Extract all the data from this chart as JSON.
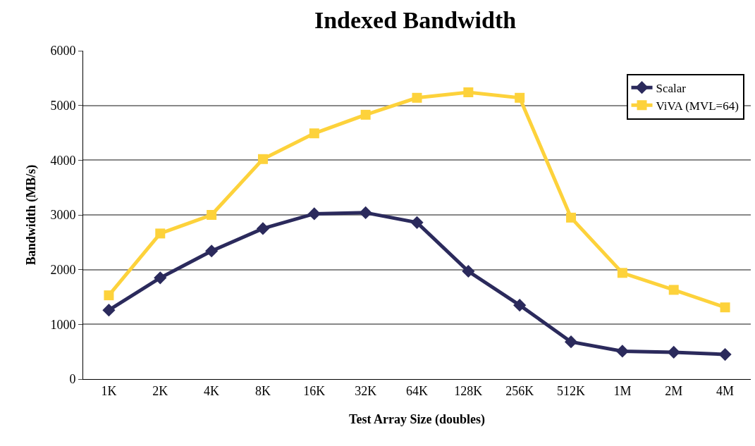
{
  "chart_data": {
    "type": "line",
    "title": "Indexed Bandwidth",
    "xlabel": "Test Array Size (doubles)",
    "ylabel": "Bandwidth (MB/s)",
    "categories": [
      "1K",
      "2K",
      "4K",
      "8K",
      "16K",
      "32K",
      "64K",
      "128K",
      "256K",
      "512K",
      "1M",
      "2M",
      "4M"
    ],
    "series": [
      {
        "name": "Scalar",
        "color": "#2b2a5c",
        "marker": "diamond",
        "values": [
          1260,
          1850,
          2340,
          2750,
          3020,
          3040,
          2860,
          1970,
          1350,
          680,
          510,
          490,
          450
        ]
      },
      {
        "name": "ViVA (MVL=64)",
        "color": "#fdd23b",
        "marker": "square",
        "values": [
          1530,
          2660,
          3000,
          4020,
          4490,
          4830,
          5140,
          5240,
          5140,
          2950,
          1940,
          1630,
          1310
        ]
      }
    ],
    "ylim": [
      0,
      6000
    ],
    "yticks": [
      0,
      1000,
      2000,
      3000,
      4000,
      5000,
      6000
    ],
    "grid": "y",
    "legend": "top right",
    "line_style": "solid"
  }
}
